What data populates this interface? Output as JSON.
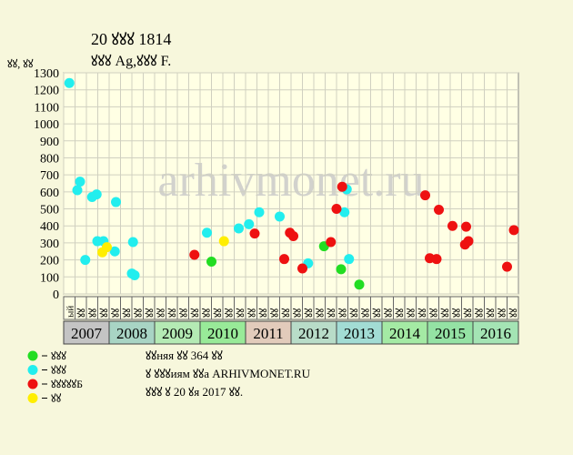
{
  "chart_data": {
    "type": "scatter",
    "title": "20 ꙋꙋꙋ 1814",
    "subtitle": "ꙋꙋꙋ Ag,ꙋꙋꙋ F.",
    "y_label": "ꙋꙋ, ꙋꙋ",
    "watermark": "arhivmonet.ru",
    "notes": [
      "ꙋꙋняя ꙋꙋ 364 ꙋꙋ",
      "ꙋ ꙋꙋꙋиям ꙋꙋа ARHIVMONET.RU",
      "ꙋꙋꙋ ꙋ 20 ꙋя 2017 ꙋꙋ."
    ],
    "columns": [
      "ый",
      "ꙋꙋ",
      "ꙋꙋ",
      "ꙋꙋ",
      "ꙋꙋ",
      "ꙋꙋ",
      "ꙋꙋ",
      "ꙋꙋ",
      "ꙋꙋ",
      "ꙋꙋ",
      "ꙋꙋ",
      "ꙋꙋ",
      "ꙋꙋ",
      "ꙋꙋ",
      "ꙋꙋ",
      "ꙋꙋ",
      "ꙋꙋ",
      "ꙋꙋ",
      "ꙋꙋ",
      "ꙋꙋ",
      "ꙋꙋ",
      "ꙋꙋ",
      "ꙋꙋ",
      "ꙋꙋ",
      "ꙋꙋ",
      "ꙋꙋ",
      "ꙋꙋ",
      "ꙋꙋ",
      "ꙋꙋ",
      "ꙋꙋ",
      "ꙋꙋ",
      "ꙋꙋ",
      "ꙋꙋ",
      "ꙋꙋ",
      "ꙋꙋ",
      "ꙋꙋ",
      "ꙋꙋ",
      "ꙋꙋ",
      "ꙋꙋ",
      "ꙋꙋ"
    ],
    "years": [
      {
        "label": "2007",
        "color": "#c4c4c4"
      },
      {
        "label": "2008",
        "color": "#a8d4c4"
      },
      {
        "label": "2009",
        "color": "#b4eab4"
      },
      {
        "label": "2010",
        "color": "#98ea98"
      },
      {
        "label": "2011",
        "color": "#e2cbbb"
      },
      {
        "label": "2012",
        "color": "#b8dcc8"
      },
      {
        "label": "2013",
        "color": "#a2dcd4"
      },
      {
        "label": "2014",
        "color": "#a4eaa4"
      },
      {
        "label": "2015",
        "color": "#94e2a4"
      },
      {
        "label": "2016",
        "color": "#a4e4b4"
      }
    ],
    "xlim": [
      0,
      40
    ],
    "ylim": [
      0,
      1300
    ],
    "yticks": [
      0,
      100,
      200,
      300,
      400,
      500,
      600,
      700,
      800,
      900,
      1000,
      1100,
      1200,
      1300
    ],
    "grid": true,
    "series": [
      {
        "name": "ꙋꙋꙋ",
        "color": "#22dd22",
        "x": [
          13.0,
          22.9,
          24.4,
          26.0
        ],
        "values": [
          190,
          280,
          145,
          55
        ]
      },
      {
        "name": "ꙋꙋꙋ",
        "color": "#22eeee",
        "x": [
          0.5,
          1.2,
          1.44,
          1.9,
          2.5,
          2.9,
          2.96,
          3.5,
          4.5,
          4.6,
          6.1,
          6.0,
          6.24,
          12.6,
          15.4,
          16.3,
          17.2,
          19.0,
          21.5,
          24.7,
          24.9,
          25.1
        ],
        "values": [
          1240,
          610,
          660,
          200,
          570,
          585,
          310,
          310,
          250,
          540,
          305,
          120,
          110,
          360,
          385,
          410,
          480,
          455,
          180,
          480,
          615,
          205
        ]
      },
      {
        "name": "ꙋꙋꙋꙋꙋБ",
        "color": "#ee1111",
        "x": [
          11.5,
          16.8,
          19.4,
          19.9,
          20.2,
          21.0,
          23.5,
          24.0,
          24.5,
          31.8,
          32.2,
          32.8,
          33.0,
          34.2,
          35.3,
          35.4,
          35.6,
          39.0,
          39.6
        ],
        "values": [
          230,
          355,
          205,
          360,
          340,
          150,
          305,
          500,
          630,
          580,
          210,
          205,
          495,
          400,
          290,
          395,
          310,
          160,
          375
        ]
      },
      {
        "name": "ꙋꙋ",
        "color": "#ffee00",
        "x": [
          3.4,
          3.8,
          14.1
        ],
        "values": [
          245,
          275,
          310
        ]
      }
    ]
  }
}
